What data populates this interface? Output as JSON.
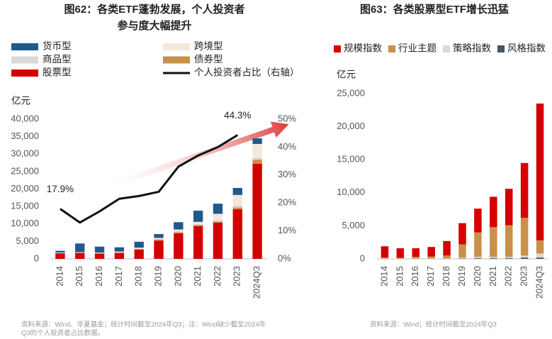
{
  "chart_data": [
    {
      "type": "bar",
      "title": [
        "图62：各类ETF蓬勃发展，个人投资者",
        "参与度大幅提升"
      ],
      "y_label": "亿元",
      "categories": [
        "2014",
        "2015",
        "2016",
        "2017",
        "2018",
        "2019",
        "2020",
        "2021",
        "2022",
        "2023",
        "2024Q3"
      ],
      "series": [
        {
          "name": "货币型",
          "color": "#1f5a8c",
          "values": [
            500,
            2500,
            1700,
            1200,
            1700,
            1100,
            2100,
            3200,
            2900,
            2000,
            1600
          ]
        },
        {
          "name": "跨境型",
          "color": "#f3e8da",
          "values": [
            100,
            100,
            0,
            100,
            300,
            200,
            400,
            600,
            1800,
            3000,
            3900
          ]
        },
        {
          "name": "商品型",
          "color": "#d9d9d9",
          "values": [
            100,
            100,
            200,
            200,
            100,
            300,
            400,
            300,
            400,
            600,
            600
          ]
        },
        {
          "name": "债券型",
          "color": "#c8914a",
          "values": [
            0,
            0,
            100,
            100,
            100,
            300,
            300,
            300,
            300,
            500,
            1200
          ]
        },
        {
          "name": "股票型",
          "color": "#d40000",
          "values": [
            1600,
            1700,
            1500,
            1700,
            2700,
            5200,
            7300,
            9400,
            10400,
            14200,
            27200
          ]
        },
        {
          "name": "个人投资者占比（右轴）",
          "type": "line",
          "axis": "y2",
          "color": "#111111",
          "values": [
            17.9,
            13,
            17,
            21.5,
            22.5,
            24,
            33,
            37,
            40,
            44.3,
            null
          ],
          "value_labels": [
            "17.9%",
            null,
            null,
            null,
            null,
            null,
            null,
            null,
            null,
            "44.3%",
            null
          ]
        }
      ],
      "ylim": [
        0,
        40000
      ],
      "yticks": [
        0,
        {
          "value": 5000,
          "label": "5,000"
        },
        {
          "value": 10000,
          "label": "10,000"
        },
        {
          "value": 15000,
          "label": "15,000"
        },
        {
          "value": 20000,
          "label": "20,000"
        },
        {
          "value": 25000,
          "label": "25,000"
        },
        {
          "value": 30000,
          "label": "30,000"
        },
        {
          "value": 35000,
          "label": "35,000"
        },
        {
          "value": 40000,
          "label": "40,000"
        }
      ],
      "y2lim": [
        0,
        50
      ],
      "y2ticks": [
        {
          "value": 0,
          "label": "0%"
        },
        {
          "value": 10,
          "label": "10%"
        },
        {
          "value": 20,
          "label": "20%"
        },
        {
          "value": 30,
          "label": "30%"
        },
        {
          "value": 40,
          "label": "40%"
        },
        {
          "value": 50,
          "label": "50%"
        }
      ],
      "source": [
        "资料来源：Wind、华夏基金；统计时间截至2024年Q3；注：Wind缺少截至2024年",
        "Q3的个人投资者占比数据。"
      ]
    },
    {
      "type": "bar",
      "title": [
        "图63：各类股票型ETF增长迅猛"
      ],
      "y_label": "亿元",
      "categories": [
        "2014",
        "2015",
        "2016",
        "2017",
        "2018",
        "2019",
        "2020",
        "2021",
        "2022",
        "2023",
        "2024Q3"
      ],
      "series": [
        {
          "name": "规模指数",
          "color": "#d40000",
          "values": [
            1700,
            1450,
            1300,
            1450,
            2200,
            3200,
            3600,
            4600,
            5500,
            8300,
            20700
          ]
        },
        {
          "name": "行业主题",
          "color": "#c8914a",
          "values": [
            150,
            100,
            250,
            300,
            450,
            2000,
            3700,
            4500,
            4800,
            5700,
            2000
          ]
        },
        {
          "name": "策略指数",
          "color": "#d9d9d9",
          "values": [
            50,
            50,
            50,
            50,
            50,
            150,
            200,
            200,
            200,
            300,
            600
          ]
        },
        {
          "name": "风格指数",
          "color": "#44546a",
          "values": [
            0,
            0,
            0,
            0,
            0,
            50,
            100,
            100,
            100,
            200,
            200
          ]
        }
      ],
      "ylim": [
        0,
        25000
      ],
      "yticks": [
        0,
        {
          "value": 5000,
          "label": "5,000"
        },
        {
          "value": 10000,
          "label": "10,000"
        },
        {
          "value": 15000,
          "label": "15,000"
        },
        {
          "value": 20000,
          "label": "20,000"
        },
        {
          "value": 25000,
          "label": "25,000"
        }
      ],
      "source": [
        "资料来源：Wind；统计时间截至2024年Q3"
      ]
    }
  ]
}
